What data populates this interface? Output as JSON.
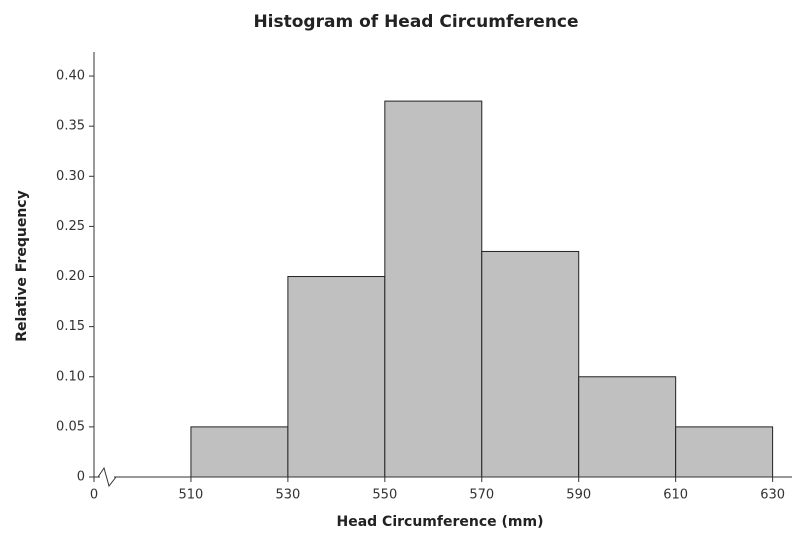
{
  "chart_data": {
    "type": "histogram",
    "title": "Histogram of Head Circumference",
    "x_label": "Head Circumference (mm)",
    "y_label": "Relative Frequency",
    "bins": [
      510,
      530,
      550,
      570,
      590,
      610,
      630
    ],
    "values": [
      0.05,
      0.2,
      0.375,
      0.225,
      0.1,
      0.05
    ],
    "color": "#c0c0c0",
    "edge_color": "#222222",
    "xlim": [
      490,
      634
    ],
    "xticks": [
      0,
      510,
      530,
      550,
      570,
      590,
      610,
      630
    ],
    "x_axis_break": true,
    "ylim": [
      0,
      0.42
    ],
    "yticks": [
      0,
      0.05,
      {
        "value": 0.1,
        "label": "0.10"
      },
      0.15,
      {
        "value": 0.2,
        "label": "0.20"
      },
      0.25,
      {
        "value": 0.3,
        "label": "0.30"
      },
      0.35,
      {
        "value": 0.4,
        "label": "0.40"
      }
    ],
    "grid": false
  }
}
